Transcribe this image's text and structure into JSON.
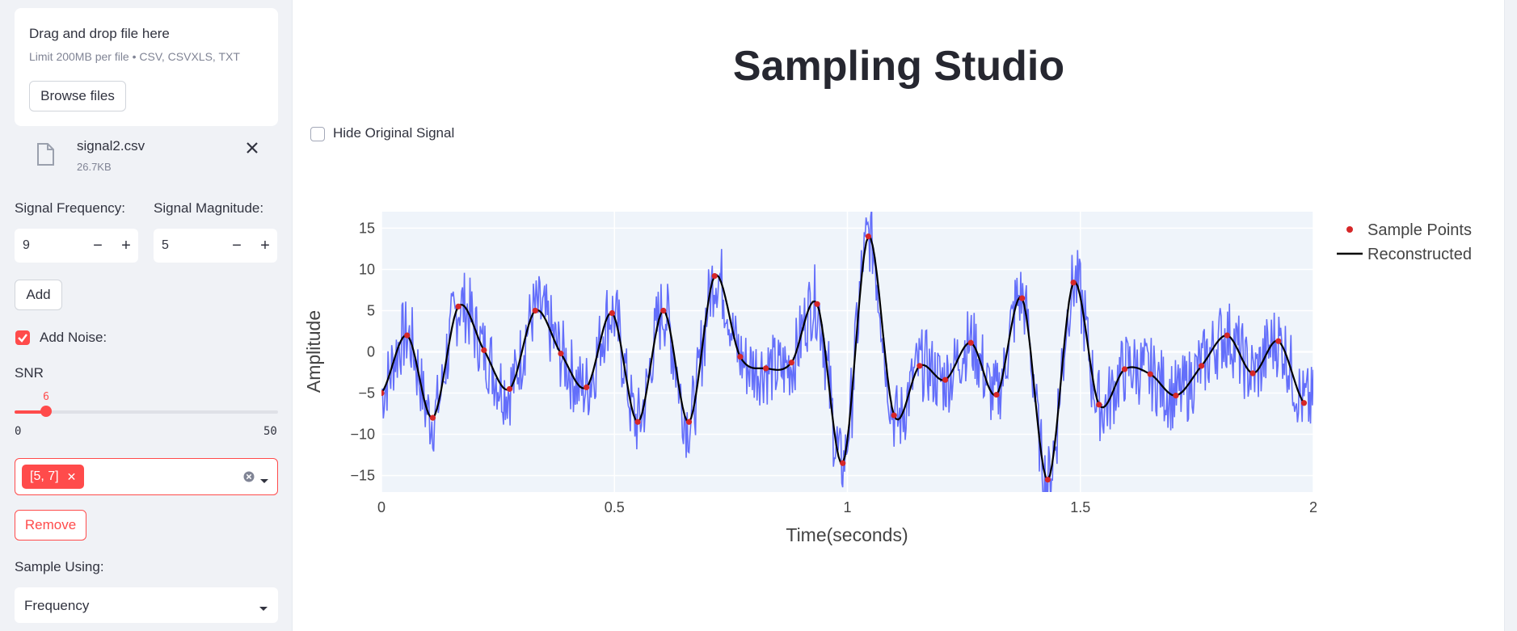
{
  "sidebar": {
    "uploader": {
      "title": "Drag and drop file here",
      "subtitle": "Limit 200MB per file • CSV, CSVXLS, TXT",
      "browse_label": "Browse files"
    },
    "file": {
      "name": "signal2.csv",
      "size": "26.7KB",
      "icon": "file-icon",
      "remove_icon": "close-icon"
    },
    "signal_frequency": {
      "label": "Signal Frequency:",
      "value": "9"
    },
    "signal_magnitude": {
      "label": "Signal Magnitude:",
      "value": "5"
    },
    "stepper": {
      "minus": "−",
      "plus": "+"
    },
    "add_label": "Add",
    "noise": {
      "label": "Add Noise:",
      "checked": true
    },
    "snr": {
      "label": "SNR",
      "value": "6",
      "min": "0",
      "max": "50",
      "fraction": 0.12
    },
    "signals": {
      "tags": [
        "[5, 7]"
      ],
      "tag_remove": "✕"
    },
    "remove_label": "Remove",
    "sample_using": {
      "label": "Sample Using:",
      "value": "Frequency"
    }
  },
  "main": {
    "title": "Sampling Studio",
    "hide_original": {
      "label": "Hide Original Signal",
      "checked": false
    }
  },
  "colors": {
    "accent": "#ff4b4b",
    "original": "#636efa",
    "reconstructed": "#000000",
    "samples": "#d62728"
  },
  "chart_data": {
    "type": "line",
    "xlabel": "Time(seconds)",
    "ylabel": "Amplitude",
    "xlim": [
      0,
      2
    ],
    "ylim": [
      -17,
      17
    ],
    "xticks": [
      "0",
      "0.5",
      "1",
      "1.5",
      "2"
    ],
    "yticks": [
      "15",
      "10",
      "5",
      "0",
      "−5",
      "−10",
      "−15"
    ],
    "legend": [
      "Sample Points",
      "Reconstructed"
    ],
    "legend_position": "top-right outside",
    "grid": true,
    "series": [
      {
        "name": "Sample Points",
        "mode": "markers",
        "x": [
          0,
          0.055,
          0.11,
          0.165,
          0.22,
          0.275,
          0.33,
          0.385,
          0.44,
          0.495,
          0.55,
          0.605,
          0.66,
          0.715,
          0.77,
          0.825,
          0.88,
          0.935,
          0.99,
          1.045,
          1.1,
          1.155,
          1.21,
          1.265,
          1.32,
          1.375,
          1.43,
          1.485,
          1.54,
          1.595,
          1.65,
          1.705,
          1.76,
          1.815,
          1.87,
          1.925,
          1.98
        ],
        "y": [
          -5,
          2,
          -8,
          5.5,
          0.2,
          -4.5,
          5,
          -0.2,
          -4.3,
          4.7,
          -8.5,
          5,
          -8.5,
          9.2,
          -0.6,
          -2,
          -1.3,
          5.8,
          -13.5,
          14,
          -7.7,
          -1.7,
          -3.4,
          1.1,
          -5.2,
          6.5,
          -15.5,
          8.4,
          -6.4,
          -2.1,
          -2.7,
          -5.3,
          -1.7,
          2,
          -2.6,
          1.3,
          -6.2
        ]
      },
      {
        "name": "Reconstructed",
        "mode": "lines"
      }
    ],
    "unlabeled_series": [
      {
        "mode": "lines",
        "note_color": "original"
      }
    ]
  }
}
